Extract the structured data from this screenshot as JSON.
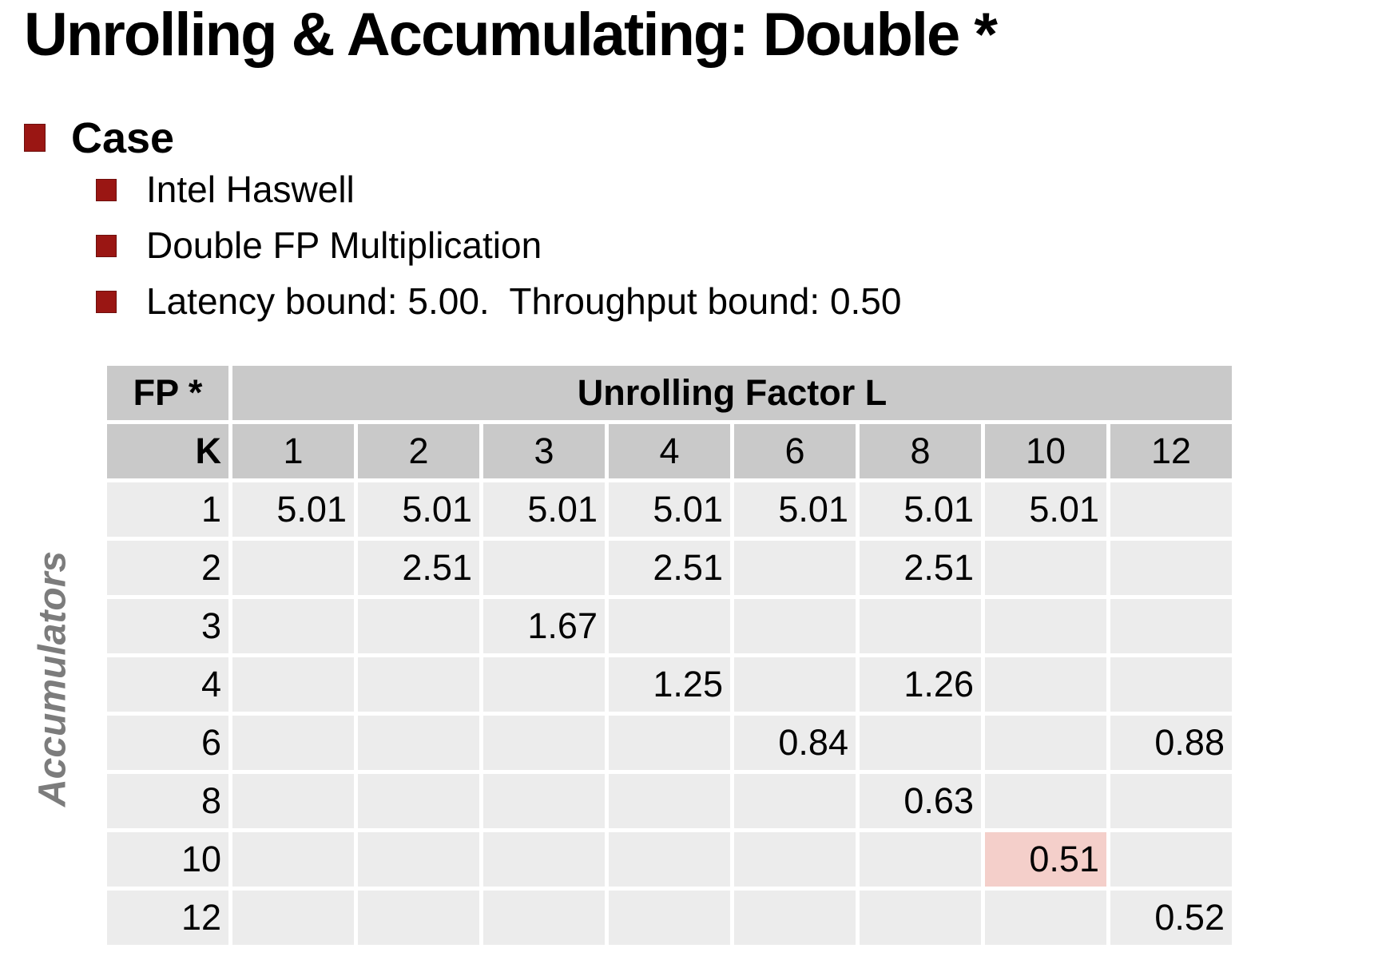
{
  "slide": {
    "title": "Unrolling & Accumulating: Double *",
    "section_bullet": "Case",
    "sub_bullets": [
      "Intel Haswell",
      "Double FP Multiplication",
      "Latency bound: 5.00.  Throughput bound: 0.50"
    ]
  },
  "table": {
    "corner_label": "FP *",
    "column_group_label": "Unrolling Factor L",
    "row_header_label": "K",
    "side_label": "Accumulators",
    "column_headers": [
      "1",
      "2",
      "3",
      "4",
      "6",
      "8",
      "10",
      "12"
    ],
    "rows": [
      {
        "k": "1",
        "values": [
          "5.01",
          "5.01",
          "5.01",
          "5.01",
          "5.01",
          "5.01",
          "5.01",
          ""
        ]
      },
      {
        "k": "2",
        "values": [
          "",
          "2.51",
          "",
          "2.51",
          "",
          "2.51",
          "",
          ""
        ]
      },
      {
        "k": "3",
        "values": [
          "",
          "",
          "1.67",
          "",
          "",
          "",
          "",
          ""
        ]
      },
      {
        "k": "4",
        "values": [
          "",
          "",
          "",
          "1.25",
          "",
          "1.26",
          "",
          ""
        ]
      },
      {
        "k": "6",
        "values": [
          "",
          "",
          "",
          "",
          "0.84",
          "",
          "",
          "0.88"
        ]
      },
      {
        "k": "8",
        "values": [
          "",
          "",
          "",
          "",
          "",
          "0.63",
          "",
          ""
        ]
      },
      {
        "k": "10",
        "values": [
          "",
          "",
          "",
          "",
          "",
          "",
          "0.51",
          ""
        ]
      },
      {
        "k": "12",
        "values": [
          "",
          "",
          "",
          "",
          "",
          "",
          "",
          "0.52"
        ]
      }
    ],
    "highlight": {
      "k": "10",
      "column": "10"
    }
  },
  "colors": {
    "bullet_red": "#9a1613",
    "header_gray": "#c9c9c9",
    "cell_gray": "#ececec",
    "highlight_pink": "#f4cfca",
    "side_label_gray": "#7c7c7c"
  }
}
